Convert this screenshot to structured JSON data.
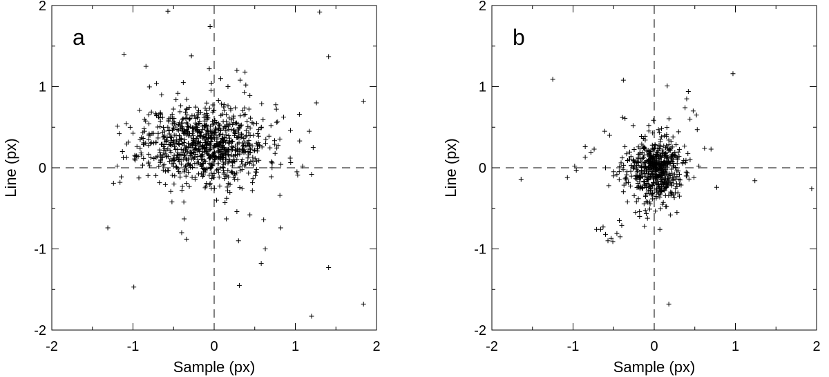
{
  "chart_data": [
    {
      "type": "scatter",
      "panel_label": "a",
      "xlabel": "Sample (px)",
      "ylabel": "Line (px)",
      "xlim": [
        -2,
        2
      ],
      "ylim": [
        -2,
        2
      ],
      "xticks": [
        "-2",
        "-1",
        "0",
        "1",
        "2"
      ],
      "yticks": [
        "-2",
        "-1",
        "0",
        "1",
        "2"
      ],
      "reference_lines": {
        "x": 0,
        "y": 0,
        "style": "dashed"
      },
      "marker": "+",
      "cluster": {
        "center": [
          -0.12,
          0.3
        ],
        "std": [
          0.38,
          0.24
        ],
        "count": 900,
        "seed": 11
      },
      "points": [
        [
          -0.57,
          1.93
        ],
        [
          -0.05,
          1.74
        ],
        [
          1.3,
          1.92
        ],
        [
          -1.11,
          1.4
        ],
        [
          -0.28,
          1.38
        ],
        [
          1.41,
          1.37
        ],
        [
          -0.84,
          1.25
        ],
        [
          -0.06,
          1.22
        ],
        [
          -0.71,
          1.04
        ],
        [
          -0.38,
          1.05
        ],
        [
          0.28,
          1.2
        ],
        [
          0.38,
          1.18
        ],
        [
          0.32,
          1.08
        ],
        [
          0.39,
          1.02
        ],
        [
          0.44,
          0.89
        ],
        [
          0.08,
          1.1
        ],
        [
          0.17,
          1.0
        ],
        [
          1.26,
          0.8
        ],
        [
          1.84,
          0.82
        ],
        [
          1.05,
          0.66
        ],
        [
          1.17,
          0.45
        ],
        [
          1.22,
          0.25
        ],
        [
          -1.17,
          0.42
        ],
        [
          -1.13,
          0.2
        ],
        [
          -1.24,
          -0.19
        ],
        [
          -1.16,
          -0.18
        ],
        [
          1.09,
          0.02
        ],
        [
          1.02,
          -0.05
        ],
        [
          0.81,
          -0.34
        ],
        [
          -0.37,
          -0.63
        ],
        [
          -0.4,
          -0.8
        ],
        [
          -0.34,
          -0.88
        ],
        [
          0.15,
          -0.63
        ],
        [
          0.44,
          -0.58
        ],
        [
          0.28,
          -0.54
        ],
        [
          0.61,
          -0.64
        ],
        [
          0.82,
          -0.74
        ],
        [
          -1.31,
          -0.74
        ],
        [
          0.3,
          -0.9
        ],
        [
          0.63,
          -1.0
        ],
        [
          0.58,
          -1.18
        ],
        [
          -0.99,
          -1.47
        ],
        [
          0.31,
          -1.45
        ],
        [
          1.41,
          -1.23
        ],
        [
          1.2,
          -1.83
        ],
        [
          1.84,
          -1.68
        ],
        [
          0.03,
          -0.4
        ],
        [
          -0.52,
          -0.42
        ],
        [
          0.7,
          0.52
        ],
        [
          -0.92,
          0.71
        ]
      ]
    },
    {
      "type": "scatter",
      "panel_label": "b",
      "xlabel": "Sample (px)",
      "ylabel": "Line (px)",
      "xlim": [
        -2,
        2
      ],
      "ylim": [
        -2,
        2
      ],
      "xticks": [
        "-2",
        "-1",
        "0",
        "1",
        "2"
      ],
      "yticks": [
        "-2",
        "-1",
        "0",
        "1",
        "2"
      ],
      "reference_lines": {
        "x": 0,
        "y": 0,
        "style": "dashed"
      },
      "marker": "+",
      "cluster": {
        "center": [
          0.0,
          -0.03
        ],
        "std": [
          0.17,
          0.2
        ],
        "count": 560,
        "seed": 23
      },
      "points": [
        [
          -1.25,
          1.09
        ],
        [
          -0.38,
          1.08
        ],
        [
          0.97,
          1.16
        ],
        [
          0.16,
          1.01
        ],
        [
          0.42,
          0.94
        ],
        [
          0.4,
          0.85
        ],
        [
          0.38,
          0.74
        ],
        [
          0.48,
          0.7
        ],
        [
          0.52,
          0.65
        ],
        [
          0.44,
          0.6
        ],
        [
          0.53,
          0.47
        ],
        [
          -0.39,
          0.62
        ],
        [
          -0.36,
          0.61
        ],
        [
          -0.26,
          0.52
        ],
        [
          -0.61,
          0.45
        ],
        [
          -0.55,
          0.4
        ],
        [
          0.62,
          0.24
        ],
        [
          0.7,
          0.23
        ],
        [
          -0.74,
          0.23
        ],
        [
          -0.85,
          0.26
        ],
        [
          -0.78,
          0.19
        ],
        [
          -0.85,
          0.13
        ],
        [
          -1.64,
          -0.14
        ],
        [
          -1.07,
          -0.12
        ],
        [
          -0.98,
          0.02
        ],
        [
          -0.96,
          -0.03
        ],
        [
          0.77,
          -0.24
        ],
        [
          1.24,
          -0.16
        ],
        [
          1.94,
          -0.26
        ],
        [
          -0.71,
          -0.76
        ],
        [
          -0.66,
          -0.76
        ],
        [
          -0.63,
          -0.73
        ],
        [
          -0.6,
          -0.82
        ],
        [
          -0.57,
          -0.9
        ],
        [
          -0.53,
          -0.87
        ],
        [
          -0.51,
          -0.91
        ],
        [
          -0.46,
          -0.81
        ],
        [
          -0.43,
          -0.65
        ],
        [
          -0.4,
          -0.71
        ],
        [
          -0.42,
          -0.85
        ],
        [
          -0.33,
          -0.42
        ],
        [
          -0.23,
          -0.55
        ],
        [
          -0.18,
          -0.6
        ],
        [
          -0.12,
          -0.72
        ],
        [
          0.07,
          -0.76
        ],
        [
          0.18,
          -1.68
        ],
        [
          0.1,
          -0.45
        ],
        [
          0.28,
          -0.55
        ],
        [
          0.31,
          -0.35
        ],
        [
          0.49,
          -0.12
        ],
        [
          0.55,
          0.02
        ],
        [
          -0.56,
          -0.22
        ],
        [
          -0.5,
          -0.1
        ],
        [
          -0.6,
          0.0
        ]
      ]
    }
  ]
}
